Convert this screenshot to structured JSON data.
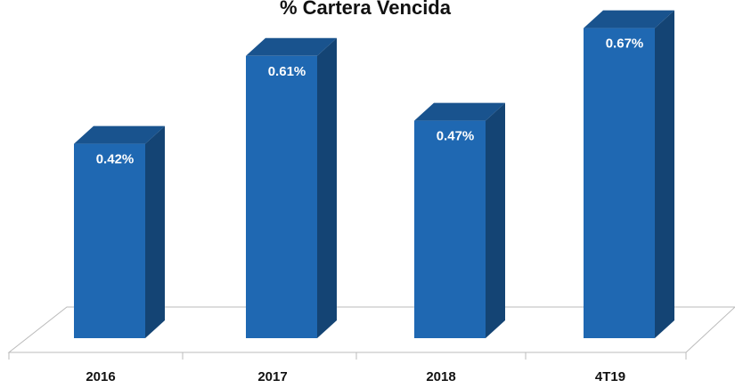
{
  "chart_data": {
    "type": "bar3d",
    "title": "% Cartera Vencida",
    "categories": [
      "2016",
      "2017",
      "2018",
      "4T19"
    ],
    "values": [
      0.42,
      0.61,
      0.47,
      0.67
    ],
    "value_labels": [
      "0.42%",
      "0.61%",
      "0.47%",
      "0.67%"
    ],
    "color": "#1f68b2"
  }
}
